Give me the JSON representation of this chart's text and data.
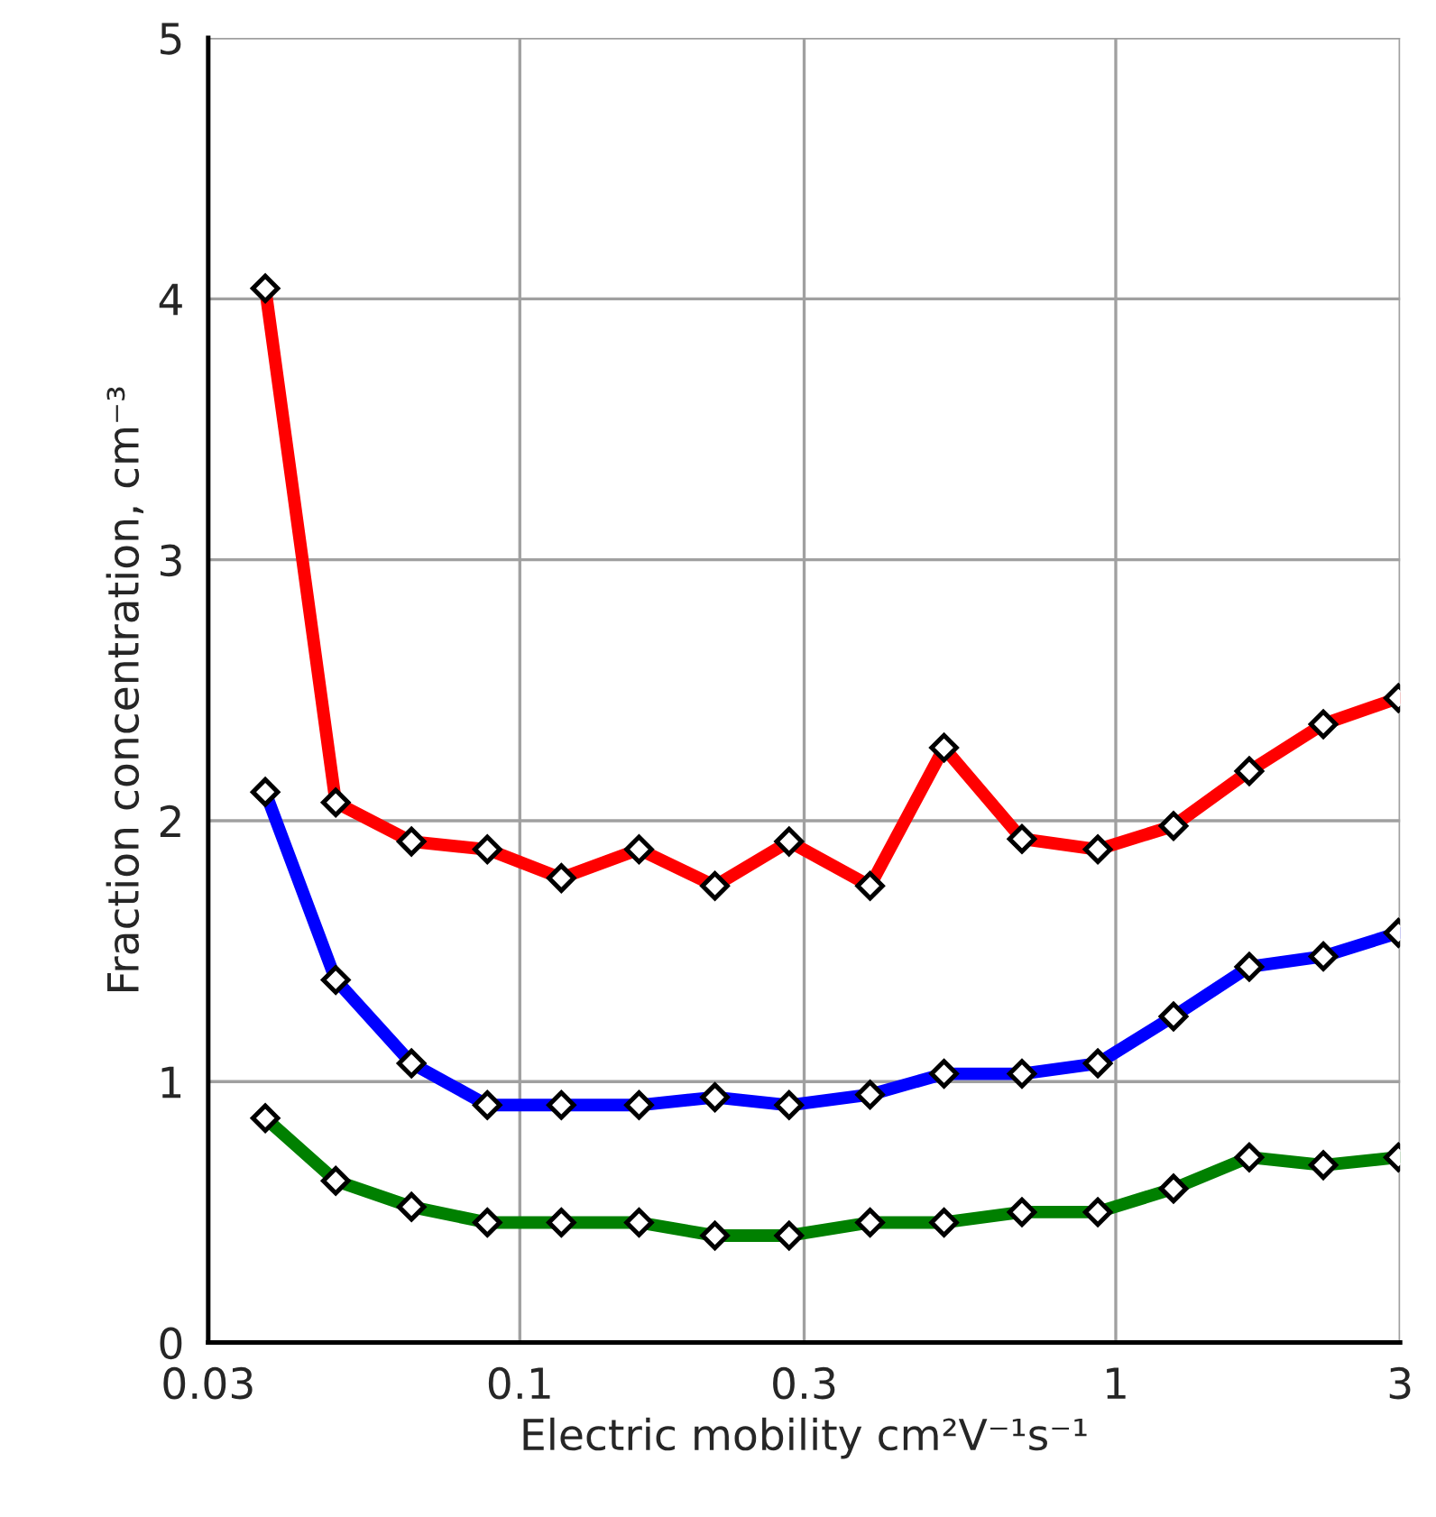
{
  "chart_data": {
    "type": "line",
    "xlabel": "Electric mobility cm²V⁻¹s⁻¹",
    "ylabel": "Fraction concentration, cm⁻³",
    "x": [
      0.0374,
      0.0491,
      0.0658,
      0.0882,
      0.1174,
      0.1585,
      0.2125,
      0.283,
      0.387,
      0.515,
      0.696,
      0.933,
      1.25,
      1.675,
      2.23,
      2.98
    ],
    "series": [
      {
        "color": "#ff0000",
        "values": [
          4.04,
          2.07,
          1.92,
          1.89,
          1.78,
          1.89,
          1.75,
          1.92,
          1.75,
          2.28,
          1.93,
          1.89,
          1.98,
          2.19,
          2.37,
          2.47
        ]
      },
      {
        "color": "#0000ff",
        "values": [
          2.11,
          1.39,
          1.07,
          0.91,
          0.91,
          0.91,
          0.94,
          0.91,
          0.95,
          1.03,
          1.03,
          1.07,
          1.25,
          1.44,
          1.48,
          1.57
        ]
      },
      {
        "color": "#008000",
        "values": [
          0.86,
          0.62,
          0.52,
          0.46,
          0.46,
          0.46,
          0.41,
          0.41,
          0.46,
          0.46,
          0.5,
          0.5,
          0.59,
          0.71,
          0.68,
          0.71
        ]
      }
    ],
    "log": "x",
    "xlim": [
      0.03,
      3
    ],
    "xticks": [
      0.03,
      0.1,
      0.3,
      1,
      3
    ],
    "ylim": [
      0,
      5
    ],
    "yticks": [
      0,
      1,
      2,
      3,
      4,
      5
    ],
    "grid": true,
    "marker": "diamond",
    "line_style": "solid",
    "legend": false
  }
}
